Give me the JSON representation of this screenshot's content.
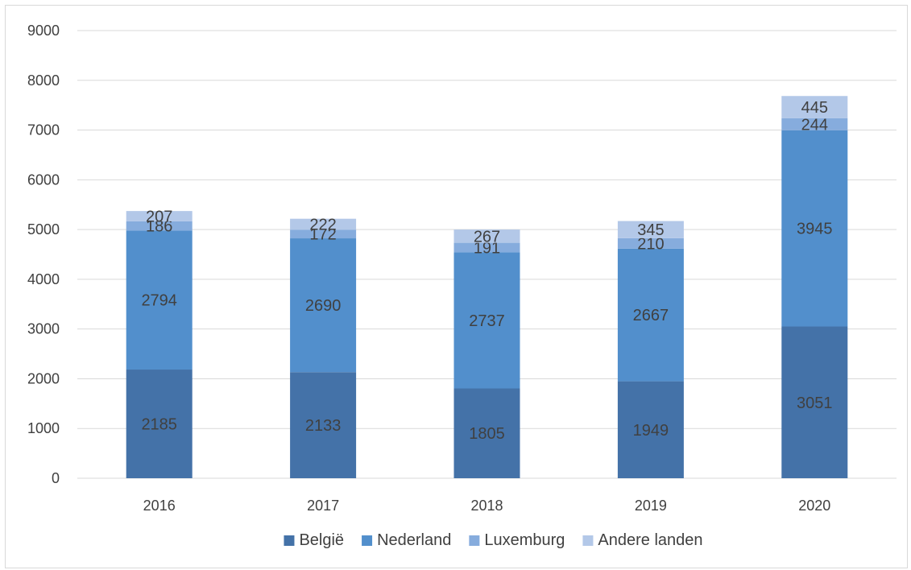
{
  "chart_data": {
    "type": "bar",
    "stacked": true,
    "title": "",
    "xlabel": "",
    "ylabel": "",
    "categories": [
      "2016",
      "2017",
      "2018",
      "2019",
      "2020"
    ],
    "series": [
      {
        "name": "België",
        "color": "#4472a8",
        "values": [
          2185,
          2133,
          1805,
          1949,
          3051
        ]
      },
      {
        "name": "Nederland",
        "color": "#528fcc",
        "values": [
          2794,
          2690,
          2737,
          2667,
          3945
        ]
      },
      {
        "name": "Luxemburg",
        "color": "#86acdd",
        "values": [
          186,
          172,
          191,
          210,
          244
        ]
      },
      {
        "name": "Andere landen",
        "color": "#b3c8e8",
        "values": [
          207,
          222,
          267,
          345,
          445
        ]
      }
    ],
    "ylim": [
      0,
      9000
    ],
    "yticks": [
      0,
      1000,
      2000,
      3000,
      4000,
      5000,
      6000,
      7000,
      8000,
      9000
    ],
    "grid": true,
    "legend_position": "bottom"
  }
}
